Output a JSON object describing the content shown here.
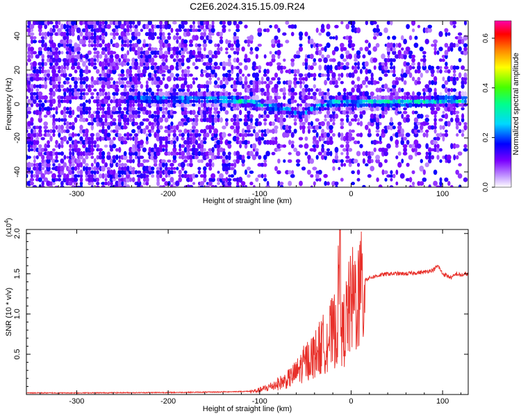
{
  "title": "C2E6.2024.315.15.09.R24",
  "chart_data": [
    {
      "type": "heatmap",
      "xlabel": "Height of straight line (km)",
      "ylabel": "Frequency (Hz)",
      "xlim": [
        -355,
        128
      ],
      "ylim": [
        -49,
        49
      ],
      "xticks": [
        -300,
        -200,
        -100,
        0,
        100
      ],
      "yticks": [
        -40,
        -20,
        0,
        20,
        40
      ],
      "colorbar": {
        "label": "Normalized spectral amplitude",
        "range": [
          0.0,
          0.67
        ],
        "ticks": [
          0.0,
          0.2,
          0.4,
          0.6
        ],
        "colors": [
          "#ffffff",
          "#c8a2ff",
          "#7b00ff",
          "#0000ff",
          "#00d8ff",
          "#00ff8c",
          "#46ff00",
          "#ffff00",
          "#ff8a00",
          "#ff0000",
          "#ff00aa"
        ]
      },
      "ridge": {
        "description_points_x": [
          -240,
          -200,
          -150,
          -120,
          -90,
          -70,
          -55,
          -40,
          -20,
          0,
          50,
          100,
          128
        ],
        "center_hz": [
          3,
          3,
          3,
          2,
          -1,
          -3,
          -6,
          -2,
          1,
          1,
          1,
          2,
          2
        ],
        "peak_amplitude": [
          0.25,
          0.3,
          0.32,
          0.36,
          0.3,
          0.28,
          0.25,
          0.28,
          0.33,
          0.34,
          0.36,
          0.38,
          0.38
        ]
      }
    },
    {
      "type": "line",
      "xlabel": "Height of straight line (km)",
      "ylabel": "SNR (10 * v/v)",
      "scale_label": "(x10",
      "scale_exp": "4",
      "xlim": [
        -355,
        128
      ],
      "ylim": [
        0,
        2.05
      ],
      "xticks": [
        -300,
        -200,
        -100,
        0,
        100
      ],
      "yticks": [
        0.5,
        1.0,
        1.5,
        2.0
      ],
      "series": [
        {
          "color": "#e8302a",
          "x": [
            -355,
            -300,
            -200,
            -150,
            -110,
            -100,
            -90,
            -80,
            -70,
            -60,
            -50,
            -40,
            -30,
            -20,
            -15,
            -12,
            -10,
            -5,
            0,
            5,
            10,
            20,
            30,
            40,
            60,
            80,
            90,
            95,
            100,
            110,
            115,
            120,
            128
          ],
          "y": [
            0.02,
            0.02,
            0.025,
            0.03,
            0.04,
            0.06,
            0.1,
            0.15,
            0.2,
            0.3,
            0.45,
            0.55,
            0.7,
            0.85,
            0.95,
            2.05,
            0.8,
            1.05,
            1.25,
            1.35,
            1.4,
            1.45,
            1.48,
            1.5,
            1.5,
            1.52,
            1.55,
            1.6,
            1.5,
            1.45,
            1.5,
            1.48,
            1.5
          ]
        }
      ]
    }
  ]
}
